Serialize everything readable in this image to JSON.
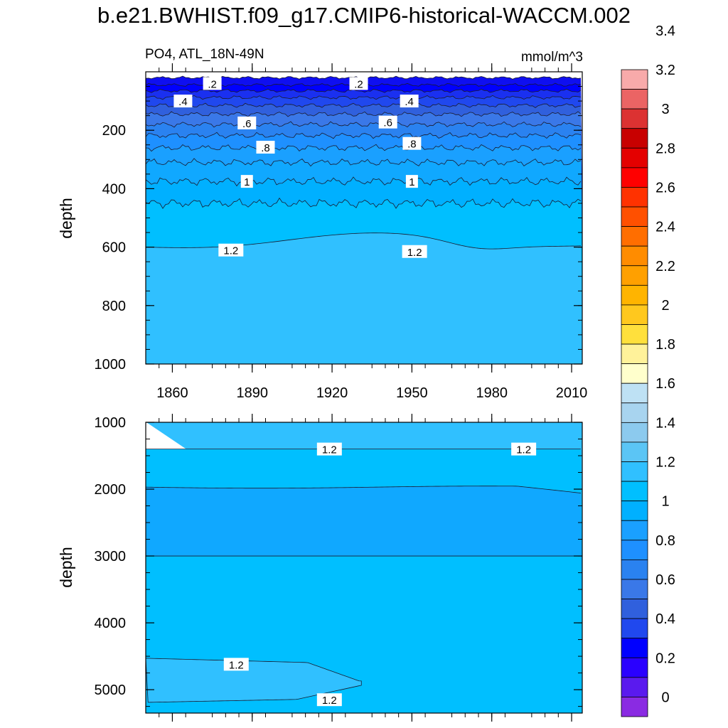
{
  "title": "b.e21.BWHIST.f09_g17.CMIP6-historical-WACCM.002",
  "chart_data": {
    "type": "contour",
    "variable_label": "PO4, ATL_18N-49N",
    "units": "mmol/m^3",
    "x_ticks": [
      1860,
      1890,
      1920,
      1950,
      1980,
      2010
    ],
    "xlim": [
      1850,
      2014
    ],
    "colorbar": {
      "labels": [
        "0",
        "0.2",
        "0.4",
        "0.6",
        "0.8",
        "1",
        "1.2",
        "1.4",
        "1.6",
        "1.8",
        "2",
        "2.2",
        "2.4",
        "2.6",
        "2.8",
        "3",
        "3.2",
        "3.4"
      ],
      "colors": [
        "#8a2be2",
        "#5a1aee",
        "#2a00ff",
        "#0000ff",
        "#2048ee",
        "#3060dd",
        "#3a78e8",
        "#2a82f0",
        "#1e90ff",
        "#1aa0ff",
        "#00b0ff",
        "#00bfff",
        "#30c0ff",
        "#5bc5f5",
        "#8ccaee",
        "#a8d4ef",
        "#bee1f4",
        "#ffffcc",
        "#fff29a",
        "#ffe03c",
        "#ffc81e",
        "#ffb400",
        "#ffa000",
        "#ff8c00",
        "#ff6e00",
        "#ff5000",
        "#ff3200",
        "#ff0000",
        "#e40000",
        "#c80000",
        "#dc3232",
        "#eb6464",
        "#f8aaaa"
      ]
    },
    "panels": [
      {
        "name": "upper",
        "ylabel": "depth",
        "ylim": [
          0,
          1000
        ],
        "y_ticks": [
          200,
          400,
          600,
          800,
          1000
        ],
        "contours": [
          {
            "level": 0.1,
            "depth": 20,
            "color": "#0f0ff0"
          },
          {
            "level": 0.2,
            "depth": 45,
            "color": "#0000ff"
          },
          {
            "level": 0.3,
            "depth": 65,
            "color": "#1a30f0"
          },
          {
            "level": 0.4,
            "depth": 88,
            "color": "#2048ee"
          },
          {
            "level": 0.5,
            "depth": 115,
            "color": "#3060dd"
          },
          {
            "level": 0.6,
            "depth": 145,
            "color": "#3a78e8"
          },
          {
            "level": 0.7,
            "depth": 180,
            "color": "#2a82f0"
          },
          {
            "level": 0.8,
            "depth": 218,
            "color": "#1e90ff"
          },
          {
            "level": 0.9,
            "depth": 260,
            "color": "#1aa0ff"
          },
          {
            "level": 1.0,
            "depth": 310,
            "color": "#10a8ff"
          },
          {
            "level": 1.1,
            "depth": 375,
            "color": "#00b0ff"
          },
          {
            "level": 1.2,
            "depth": 450,
            "color": "#00bfff"
          },
          {
            "level": 1.3,
            "depth": 600,
            "color": "#30c0ff"
          }
        ],
        "contour_labels": [
          {
            "text": ".2",
            "x": 1875,
            "depth": 40
          },
          {
            "text": ".2",
            "x": 1930,
            "depth": 40
          },
          {
            "text": ".4",
            "x": 1864,
            "depth": 100
          },
          {
            "text": ".4",
            "x": 1949,
            "depth": 100
          },
          {
            "text": ".6",
            "x": 1888,
            "depth": 175
          },
          {
            "text": ".6",
            "x": 1941,
            "depth": 172
          },
          {
            "text": ".8",
            "x": 1895,
            "depth": 258
          },
          {
            "text": ".8",
            "x": 1950,
            "depth": 245
          },
          {
            "text": "1",
            "x": 1888,
            "depth": 375
          },
          {
            "text": "1",
            "x": 1950,
            "depth": 375
          },
          {
            "text": "1.2",
            "x": 1882,
            "depth": 610
          },
          {
            "text": "1.2",
            "x": 1951,
            "depth": 615
          }
        ]
      },
      {
        "name": "lower",
        "ylabel": "depth",
        "ylim": [
          1000,
          5350
        ],
        "y_ticks": [
          1000,
          2000,
          3000,
          4000,
          5000
        ],
        "contours": [
          {
            "level": 1.2,
            "depth": 1000,
            "color": "#30c0ff"
          },
          {
            "level": 1.1,
            "depth": 1400,
            "color": "#00bfff"
          },
          {
            "level": 1.0,
            "depth": 1970,
            "color": "#10a8ff"
          },
          {
            "level": 1.1,
            "depth": 3000,
            "color": "#00bfff"
          }
        ],
        "contour_labels": [
          {
            "text": "1.2",
            "x": 1919,
            "depth": 1400
          },
          {
            "text": "1.2",
            "x": 1992,
            "depth": 1400
          },
          {
            "text": "1.2",
            "x": 1884,
            "depth": 4620
          },
          {
            "text": "1.2",
            "x": 1919,
            "depth": 5150
          }
        ]
      }
    ]
  }
}
